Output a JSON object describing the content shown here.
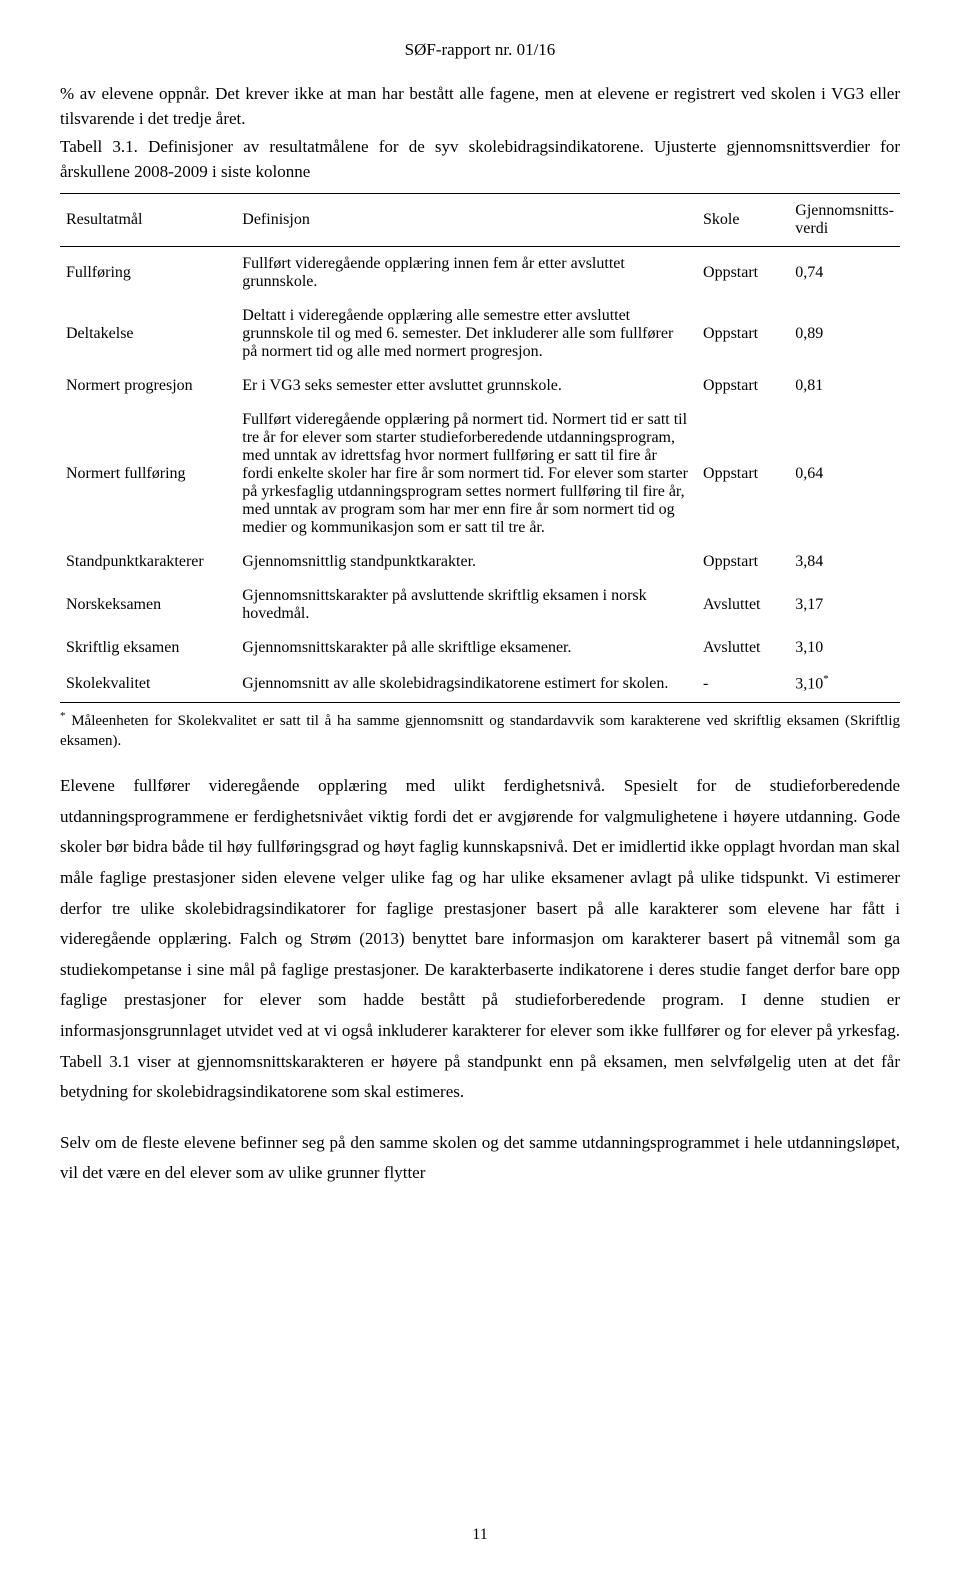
{
  "colors": {
    "text": "#000000",
    "background": "#ffffff",
    "rule": "#000000"
  },
  "typography": {
    "font_family": "Times New Roman",
    "body_fontsize_pt": 13,
    "table_fontsize_pt": 12,
    "footnote_fontsize_pt": 11,
    "line_height_body": 1.8,
    "line_height_table": 1.45
  },
  "header": {
    "report_label": "SØF-rapport nr. 01/16"
  },
  "intro": {
    "lead_in": "% av elevene oppnår. Det krever ikke at man har bestått alle fagene, men at elevene er registrert ved skolen i VG3 eller tilsvarende i det tredje året.",
    "caption": "Tabell 3.1. Definisjoner av resultatmålene for de syv skolebidragsindikatorene. Ujusterte gjennomsnittsverdier for årskullene 2008-2009 i siste kolonne"
  },
  "table": {
    "headers": {
      "resultatmal": "Resultatmål",
      "definisjon": "Definisjon",
      "skole": "Skole",
      "gjennomsnitt_line1": "Gjennomsnitts-",
      "gjennomsnitt_line2": "verdi"
    },
    "rows": [
      {
        "resultatmal": "Fullføring",
        "definisjon": "Fullført videregående opplæring innen fem år etter avsluttet grunnskole.",
        "skole": "Oppstart",
        "verdi": "0,74"
      },
      {
        "resultatmal": "Deltakelse",
        "definisjon": "Deltatt i videregående opplæring alle semestre etter avsluttet grunnskole til og med 6. semester. Det inkluderer alle som fullfører på normert tid og alle med normert progresjon.",
        "skole": "Oppstart",
        "verdi": "0,89"
      },
      {
        "resultatmal": "Normert progresjon",
        "definisjon": "Er i VG3 seks semester etter avsluttet grunnskole.",
        "skole": "Oppstart",
        "verdi": "0,81"
      },
      {
        "resultatmal": "Normert fullføring",
        "definisjon": "Fullført videregående opplæring på normert tid. Normert tid er satt til tre år for elever som starter studieforberedende utdanningsprogram, med unntak av idrettsfag hvor normert fullføring er satt til fire år fordi enkelte skoler har fire år som normert tid. For elever som starter på yrkesfaglig utdanningsprogram settes normert fullføring til fire år, med unntak av program som har mer enn fire år som normert tid og medier og kommunikasjon som er satt til tre år.",
        "skole": "Oppstart",
        "verdi": "0,64"
      },
      {
        "resultatmal": "Standpunktkarakterer",
        "definisjon": "Gjennomsnittlig standpunktkarakter.",
        "skole": "Oppstart",
        "verdi": "3,84"
      },
      {
        "resultatmal": "Norskeksamen",
        "definisjon": "Gjennomsnittskarakter på avsluttende skriftlig eksamen i norsk hovedmål.",
        "skole": "Avsluttet",
        "verdi": "3,17"
      },
      {
        "resultatmal": "Skriftlig eksamen",
        "definisjon": "Gjennomsnittskarakter på alle skriftlige eksamener.",
        "skole": "Avsluttet",
        "verdi": "3,10"
      },
      {
        "resultatmal": "Skolekvalitet",
        "definisjon": "Gjennomsnitt av alle skolebidragsindikatorene estimert for skolen.",
        "skole": "-",
        "verdi": "3,10",
        "verdi_suffix": "*"
      }
    ]
  },
  "footnote": {
    "marker": "*",
    "text": " Måleenheten for Skolekvalitet er satt til å ha samme gjennomsnitt og standardavvik som karakterene ved skriftlig eksamen (Skriftlig eksamen)."
  },
  "body": {
    "para1": "Elevene fullfører videregående opplæring med ulikt ferdighetsnivå. Spesielt for de studieforberedende utdanningsprogrammene er ferdighetsnivået viktig fordi det er avgjørende for valgmulighetene i høyere utdanning. Gode skoler bør bidra både til høy fullføringsgrad og høyt faglig kunnskapsnivå. Det er imidlertid ikke opplagt hvordan man skal måle faglige prestasjoner siden elevene velger ulike fag og har ulike eksamener avlagt på ulike tidspunkt. Vi estimerer derfor tre ulike skolebidragsindikatorer for faglige prestasjoner basert på alle karakterer som elevene har fått i videregående opplæring. Falch og Strøm (2013) benyttet bare informasjon om karakterer basert på vitnemål som ga studiekompetanse i sine mål på faglige prestasjoner. De karakterbaserte indikatorene i deres studie fanget derfor bare opp faglige prestasjoner for elever som hadde bestått på studieforberedende program. I denne studien er informasjonsgrunnlaget utvidet ved at vi også inkluderer karakterer for elever som ikke fullfører og for elever på yrkesfag. Tabell 3.1 viser at gjennomsnittskarakteren er høyere på standpunkt enn på eksamen, men selvfølgelig uten at det får betydning for skolebidragsindikatorene som skal estimeres.",
    "para2": "Selv om de fleste elevene befinner seg på den samme skolen og det samme utdanningsprogrammet i hele utdanningsløpet, vil det være en del elever som av ulike grunner flytter"
  },
  "page_number": "11"
}
